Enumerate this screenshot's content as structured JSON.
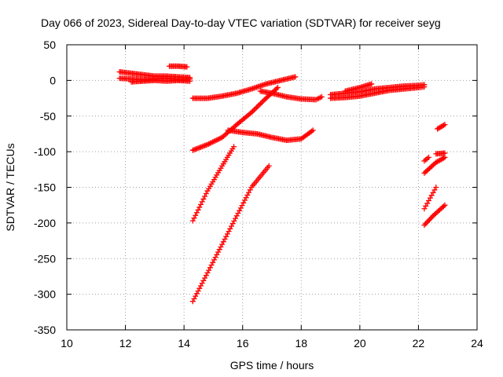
{
  "chart_data": {
    "type": "scatter",
    "title": "Day 066 of 2023, Sidereal Day-to-day VTEC variation (SDTVAR) for receiver seyg",
    "xlabel": "GPS time / hours",
    "ylabel": "SDTVAR / TECUs",
    "xlim": [
      10,
      24
    ],
    "ylim": [
      -350,
      50
    ],
    "xticks": [
      10,
      12,
      14,
      16,
      18,
      20,
      22,
      24
    ],
    "yticks": [
      50,
      0,
      -50,
      -100,
      -150,
      -200,
      -250,
      -300,
      -350
    ],
    "grid": true,
    "marker": "plus",
    "series": [
      {
        "color": "#ff0000",
        "x": [
          11.8,
          12.2,
          12.6,
          13.0,
          13.4,
          13.8,
          14.2
        ],
        "y": [
          12,
          10,
          8,
          6,
          6,
          5,
          4
        ]
      },
      {
        "color": "#ff0000",
        "x": [
          11.8,
          12.2,
          12.6,
          13.0,
          13.4,
          13.8,
          14.2
        ],
        "y": [
          3,
          2,
          1,
          2,
          3,
          1,
          2
        ]
      },
      {
        "color": "#ff0000",
        "x": [
          12.2,
          12.6,
          13.0,
          13.4,
          13.8,
          14.2
        ],
        "y": [
          -2,
          -1,
          0,
          -1,
          0,
          -1
        ]
      },
      {
        "color": "#ff0000",
        "x": [
          13.5,
          13.8,
          14.1
        ],
        "y": [
          20,
          20,
          19
        ]
      },
      {
        "color": "#ff0000",
        "x": [
          14.3,
          14.8,
          15.3,
          15.8,
          16.3,
          16.8,
          17.3,
          17.8
        ],
        "y": [
          -25,
          -25,
          -22,
          -18,
          -12,
          -5,
          0,
          5
        ]
      },
      {
        "color": "#ff0000",
        "x": [
          14.3,
          14.8,
          15.3,
          15.8,
          16.3,
          16.8,
          17.2
        ],
        "y": [
          -98,
          -90,
          -80,
          -62,
          -45,
          -25,
          -10
        ]
      },
      {
        "color": "#ff0000",
        "x": [
          14.3,
          14.8,
          15.3,
          15.7
        ],
        "y": [
          -197,
          -155,
          -120,
          -93
        ]
      },
      {
        "color": "#ff0000",
        "x": [
          14.3,
          14.8,
          15.3,
          15.8,
          16.3,
          16.9
        ],
        "y": [
          -310,
          -270,
          -230,
          -190,
          -150,
          -120
        ]
      },
      {
        "color": "#ff0000",
        "x": [
          15.5,
          16.0,
          16.5,
          17.0,
          17.5,
          18.0,
          18.4
        ],
        "y": [
          -70,
          -73,
          -75,
          -80,
          -84,
          -82,
          -70
        ]
      },
      {
        "color": "#ff0000",
        "x": [
          16.6,
          17.0,
          17.5,
          18.0,
          18.5,
          18.7
        ],
        "y": [
          -15,
          -18,
          -23,
          -26,
          -27,
          -23
        ]
      },
      {
        "color": "#ff0000",
        "x": [
          19.0,
          19.5,
          20.0,
          20.5,
          21.0,
          21.5,
          22.0,
          22.2
        ],
        "y": [
          -20,
          -18,
          -16,
          -12,
          -10,
          -8,
          -7,
          -6
        ]
      },
      {
        "color": "#ff0000",
        "x": [
          19.0,
          19.5,
          20.0,
          20.5,
          21.0,
          21.5,
          22.0,
          22.2
        ],
        "y": [
          -25,
          -24,
          -22,
          -18,
          -14,
          -12,
          -10,
          -9
        ]
      },
      {
        "color": "#ff0000",
        "x": [
          19.5,
          20.0,
          20.4
        ],
        "y": [
          -15,
          -10,
          -5
        ]
      },
      {
        "color": "#ff0000",
        "x": [
          22.2,
          22.4,
          22.6
        ],
        "y": [
          -180,
          -165,
          -150
        ]
      },
      {
        "color": "#ff0000",
        "x": [
          22.2,
          22.6,
          22.9
        ],
        "y": [
          -130,
          -115,
          -108
        ]
      },
      {
        "color": "#ff0000",
        "x": [
          22.2,
          22.5,
          22.9
        ],
        "y": [
          -203,
          -190,
          -175
        ]
      },
      {
        "color": "#ff0000",
        "x": [
          22.2,
          22.35
        ],
        "y": [
          -113,
          -108
        ]
      },
      {
        "color": "#ff0000",
        "x": [
          22.65,
          22.9
        ],
        "y": [
          -68,
          -62
        ]
      },
      {
        "color": "#ff0000",
        "x": [
          22.6,
          22.9
        ],
        "y": [
          -103,
          -102
        ]
      }
    ]
  }
}
